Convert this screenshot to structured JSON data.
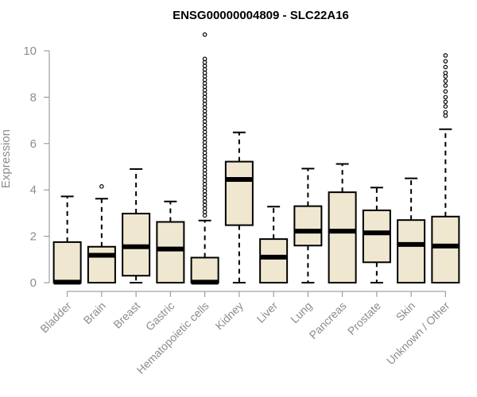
{
  "chart_data": {
    "type": "boxplot",
    "title": "ENSG00000004809 - SLC22A16",
    "xlabel": "",
    "ylabel": "Expression",
    "ylim": [
      0,
      10
    ],
    "yticks": [
      0,
      2,
      4,
      6,
      8,
      10
    ],
    "box_fill": "#efe7cf",
    "categories": [
      "Bladder",
      "Brain",
      "Breast",
      "Gastric",
      "Hematopoietic cells",
      "Kidney",
      "Liver",
      "Lung",
      "Pancreas",
      "Prostate",
      "Skin",
      "Unknown / Other"
    ],
    "boxes": [
      {
        "whisker_low": 0,
        "q1": 0,
        "median": 0.02,
        "q3": 1.75,
        "whisker_high": 3.72,
        "outliers": []
      },
      {
        "whisker_low": 0,
        "q1": 0,
        "median": 1.18,
        "q3": 1.55,
        "whisker_high": 3.62,
        "outliers": [
          4.15
        ]
      },
      {
        "whisker_low": 0,
        "q1": 0.3,
        "median": 1.55,
        "q3": 2.98,
        "whisker_high": 4.9,
        "outliers": []
      },
      {
        "whisker_low": 0,
        "q1": 0,
        "median": 1.45,
        "q3": 2.62,
        "whisker_high": 3.5,
        "outliers": []
      },
      {
        "whisker_low": 0,
        "q1": 0,
        "median": 0.02,
        "q3": 1.08,
        "whisker_high": 2.68,
        "outliers": [
          2.9,
          3.05,
          3.2,
          3.35,
          3.5,
          3.65,
          3.8,
          3.95,
          4.1,
          4.25,
          4.4,
          4.55,
          4.7,
          4.85,
          5.0,
          5.15,
          5.3,
          5.45,
          5.6,
          5.75,
          5.9,
          6.05,
          6.2,
          6.35,
          6.5,
          6.65,
          6.8,
          6.95,
          7.1,
          7.25,
          7.4,
          7.55,
          7.7,
          7.85,
          8.0,
          8.15,
          8.3,
          8.45,
          8.6,
          8.75,
          8.9,
          9.05,
          9.2,
          9.35,
          9.5,
          9.65,
          10.7
        ]
      },
      {
        "whisker_low": 0,
        "q1": 2.48,
        "median": 4.45,
        "q3": 5.22,
        "whisker_high": 6.48,
        "outliers": []
      },
      {
        "whisker_low": 0,
        "q1": 0,
        "median": 1.1,
        "q3": 1.88,
        "whisker_high": 3.28,
        "outliers": []
      },
      {
        "whisker_low": 0,
        "q1": 1.6,
        "median": 2.22,
        "q3": 3.3,
        "whisker_high": 4.92,
        "outliers": []
      },
      {
        "whisker_low": 0,
        "q1": 0,
        "median": 2.22,
        "q3": 3.9,
        "whisker_high": 5.12,
        "outliers": []
      },
      {
        "whisker_low": 0,
        "q1": 0.88,
        "median": 2.15,
        "q3": 3.12,
        "whisker_high": 4.1,
        "outliers": []
      },
      {
        "whisker_low": 0,
        "q1": 0,
        "median": 1.65,
        "q3": 2.7,
        "whisker_high": 4.5,
        "outliers": []
      },
      {
        "whisker_low": 0,
        "q1": 0,
        "median": 1.58,
        "q3": 2.85,
        "whisker_high": 6.62,
        "outliers": [
          7.2,
          7.35,
          7.6,
          7.8,
          8.0,
          8.25,
          8.5,
          8.7,
          8.9,
          9.05,
          9.3,
          9.55,
          9.8
        ]
      }
    ]
  }
}
